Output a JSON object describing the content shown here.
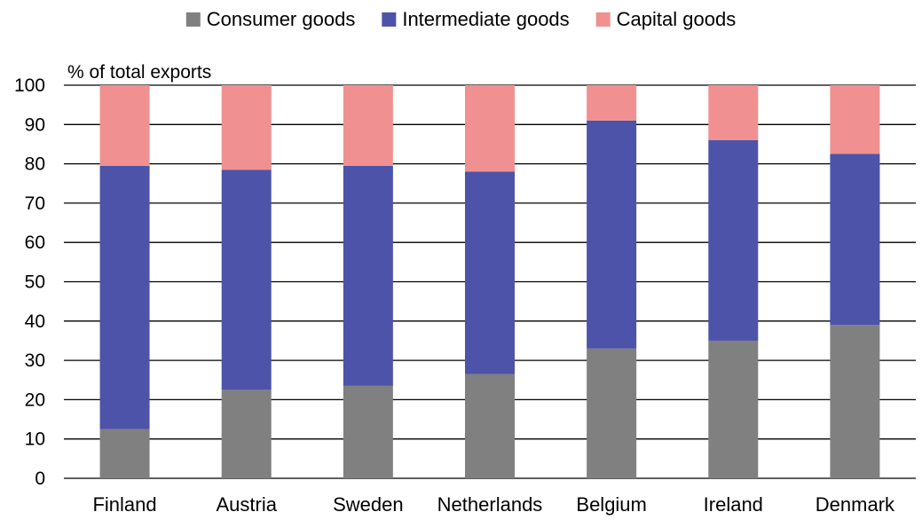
{
  "chart_data": {
    "type": "bar",
    "stacked": true,
    "ylabel": "% of total exports",
    "ylim": [
      0,
      100
    ],
    "yticks": [
      0,
      10,
      20,
      30,
      40,
      50,
      60,
      70,
      80,
      90,
      100
    ],
    "grid": true,
    "legend": "top",
    "categories": [
      "Finland",
      "Austria",
      "Sweden",
      "Netherlands",
      "Belgium",
      "Ireland",
      "Denmark"
    ],
    "series": [
      {
        "name": "Consumer goods",
        "color": "#808080",
        "values": [
          12.5,
          22.5,
          23.5,
          26.5,
          33,
          35,
          39
        ]
      },
      {
        "name": "Intermediate goods",
        "color": "#4c53a8",
        "values": [
          67,
          56,
          56,
          51.5,
          58,
          51,
          43.5
        ]
      },
      {
        "name": "Capital goods",
        "color": "#f09090",
        "values": [
          20.5,
          21.5,
          20.5,
          22,
          9,
          14,
          17.5
        ]
      }
    ]
  }
}
